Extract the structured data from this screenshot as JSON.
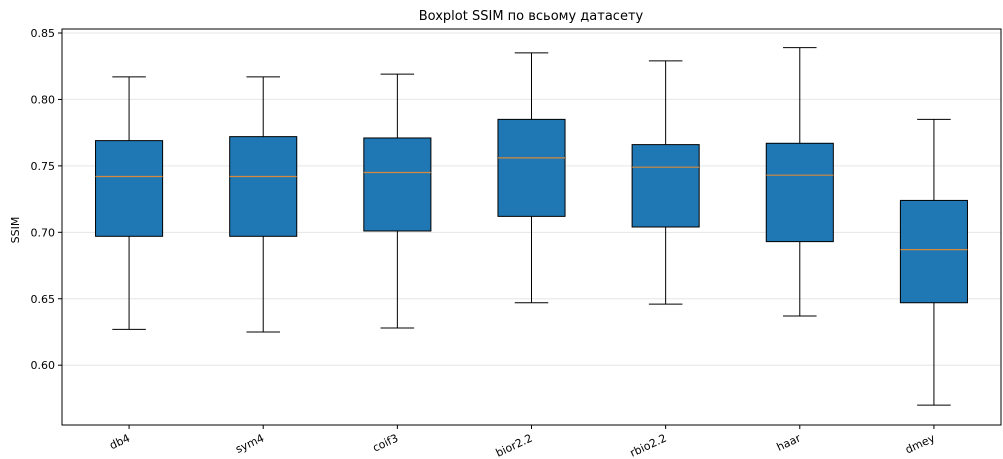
{
  "chart_data": {
    "type": "box",
    "title": "Boxplot SSIM по всьому датасету",
    "xlabel": "",
    "ylabel": "SSIM",
    "ylim": [
      0.555,
      0.853
    ],
    "yticks": [
      0.6,
      0.65,
      0.7,
      0.75,
      0.8,
      0.85
    ],
    "ytick_labels": [
      "0.60",
      "0.65",
      "0.70",
      "0.75",
      "0.80",
      "0.85"
    ],
    "grid": "horizontal",
    "categories": [
      "db4",
      "sym4",
      "coif3",
      "bior2.2",
      "rbio2.2",
      "haar",
      "dmey"
    ],
    "boxes": [
      {
        "whisker_low": 0.627,
        "q1": 0.697,
        "median": 0.742,
        "q3": 0.769,
        "whisker_high": 0.817
      },
      {
        "whisker_low": 0.625,
        "q1": 0.697,
        "median": 0.742,
        "q3": 0.772,
        "whisker_high": 0.817
      },
      {
        "whisker_low": 0.628,
        "q1": 0.701,
        "median": 0.745,
        "q3": 0.771,
        "whisker_high": 0.819
      },
      {
        "whisker_low": 0.647,
        "q1": 0.712,
        "median": 0.756,
        "q3": 0.785,
        "whisker_high": 0.835
      },
      {
        "whisker_low": 0.646,
        "q1": 0.704,
        "median": 0.749,
        "q3": 0.766,
        "whisker_high": 0.829
      },
      {
        "whisker_low": 0.637,
        "q1": 0.693,
        "median": 0.743,
        "q3": 0.767,
        "whisker_high": 0.839
      },
      {
        "whisker_low": 0.57,
        "q1": 0.647,
        "median": 0.687,
        "q3": 0.724,
        "whisker_high": 0.785
      }
    ],
    "colors": {
      "box_fill": "#1f77b4",
      "median": "#d38a3c",
      "grid": "#e6e6e6"
    }
  }
}
